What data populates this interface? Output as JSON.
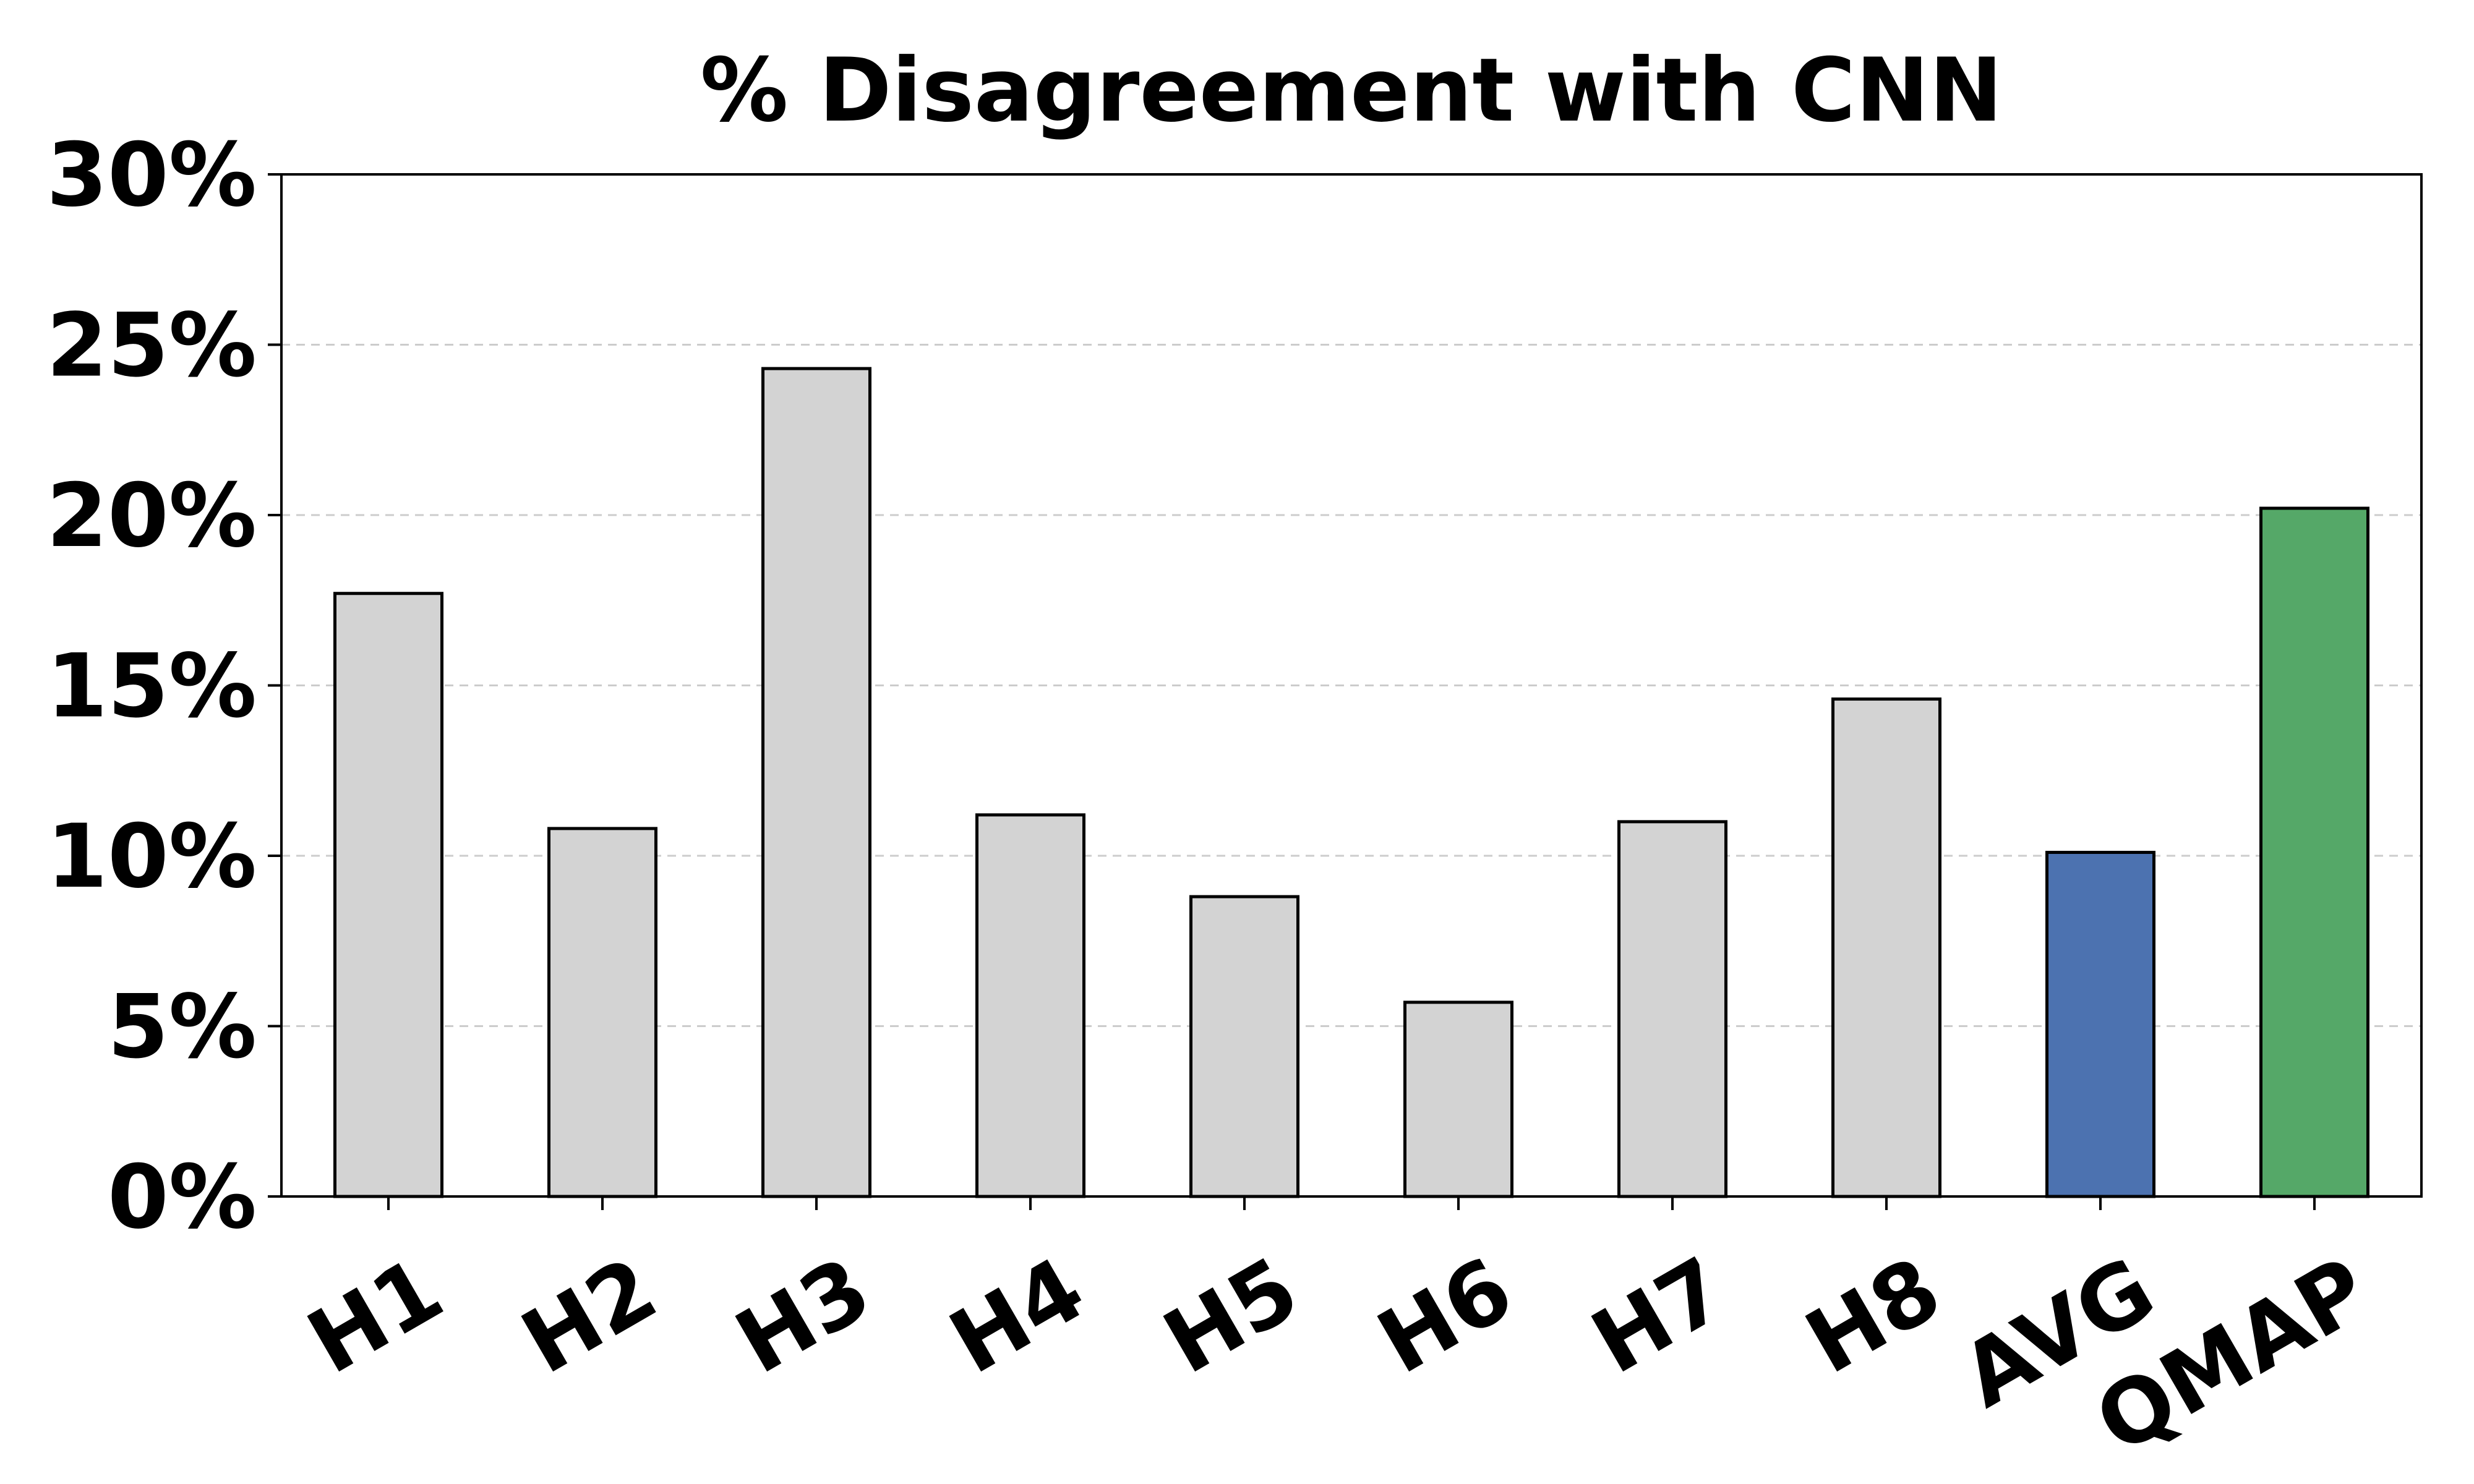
{
  "chart_data": {
    "type": "bar",
    "title": "% Disagreement with CNN",
    "xlabel": "",
    "ylabel": "",
    "categories": [
      "H1",
      "H2",
      "H3",
      "H4",
      "H5",
      "H6",
      "H7",
      "H8",
      "AVG",
      "QMAP"
    ],
    "values": [
      17.7,
      10.8,
      24.3,
      11.2,
      8.8,
      5.7,
      11.0,
      14.6,
      10.1,
      20.2
    ],
    "bar_colors": [
      "#d3d3d3",
      "#d3d3d3",
      "#d3d3d3",
      "#d3d3d3",
      "#d3d3d3",
      "#d3d3d3",
      "#d3d3d3",
      "#d3d3d3",
      "#4c72b0",
      "#55a868"
    ],
    "ylim": [
      0,
      30
    ],
    "yticks": [
      0,
      5,
      10,
      15,
      20,
      25,
      30
    ],
    "ytick_labels": [
      "0%",
      "5%",
      "10%",
      "15%",
      "20%",
      "25%",
      "30%"
    ],
    "grid": "horizontal dashed",
    "legend": "none"
  }
}
